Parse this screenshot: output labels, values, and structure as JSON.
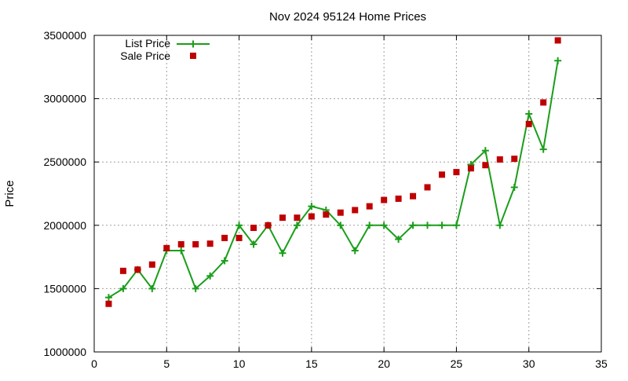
{
  "chart_data": {
    "type": "line",
    "title": "Nov 2024 95124 Home Prices",
    "xlabel": "",
    "ylabel": "Price",
    "xlim": [
      0,
      35
    ],
    "ylim": [
      1000000,
      3500000
    ],
    "xticks": [
      0,
      5,
      10,
      15,
      20,
      25,
      30,
      35
    ],
    "yticks": [
      1000000,
      1500000,
      2000000,
      2500000,
      3000000,
      3500000
    ],
    "grid": true,
    "legend_position": "top-left",
    "series": [
      {
        "name": "List Price",
        "style": "line+cross",
        "color": "#1a9e1a",
        "x": [
          1,
          2,
          3,
          4,
          5,
          6,
          7,
          8,
          9,
          10,
          11,
          12,
          13,
          14,
          15,
          16,
          17,
          18,
          19,
          20,
          21,
          22,
          23,
          24,
          25,
          26,
          27,
          28,
          29,
          30,
          31,
          32
        ],
        "values": [
          1430000,
          1500000,
          1650000,
          1500000,
          1800000,
          1800000,
          1500000,
          1600000,
          1720000,
          2000000,
          1850000,
          2000000,
          1780000,
          2000000,
          2150000,
          2120000,
          2000000,
          1800000,
          2000000,
          2000000,
          1890000,
          2000000,
          2000000,
          2000000,
          2000000,
          2480000,
          2590000,
          2000000,
          2300000,
          2880000,
          2600000,
          3300000
        ]
      },
      {
        "name": "Sale Price",
        "style": "square",
        "color": "#c00000",
        "x": [
          1,
          2,
          3,
          4,
          5,
          6,
          7,
          8,
          9,
          10,
          11,
          12,
          13,
          14,
          15,
          16,
          17,
          18,
          19,
          20,
          21,
          22,
          23,
          24,
          25,
          26,
          27,
          28,
          29,
          30,
          31,
          32
        ],
        "values": [
          1380000,
          1640000,
          1650000,
          1690000,
          1820000,
          1850000,
          1850000,
          1855000,
          1900000,
          1900000,
          1980000,
          2000000,
          2060000,
          2060000,
          2070000,
          2085000,
          2100000,
          2120000,
          2150000,
          2200000,
          2210000,
          2230000,
          2300000,
          2400000,
          2420000,
          2450000,
          2475000,
          2520000,
          2525000,
          2800000,
          2970000,
          3460000
        ]
      }
    ]
  }
}
